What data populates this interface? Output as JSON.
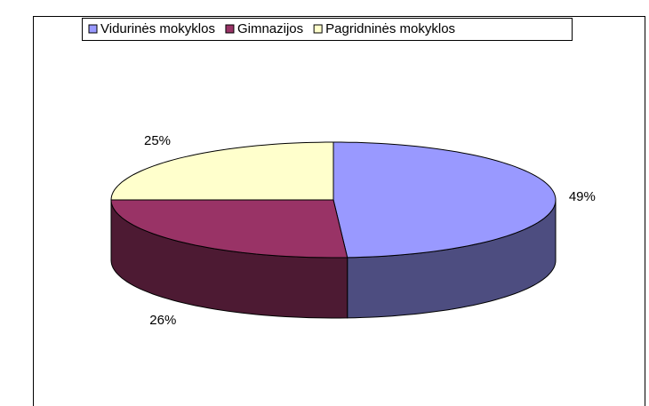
{
  "chart_data": {
    "type": "pie",
    "three_d": true,
    "categories": [
      "Vidurinės mokyklos",
      "Gimnazijos",
      "Pagridninės mokyklos"
    ],
    "values": [
      49,
      26,
      25
    ],
    "value_labels": [
      "49%",
      "26%",
      "25%"
    ],
    "colors": [
      "#9999ff",
      "#993366",
      "#ffffcc"
    ],
    "legend": "top"
  }
}
